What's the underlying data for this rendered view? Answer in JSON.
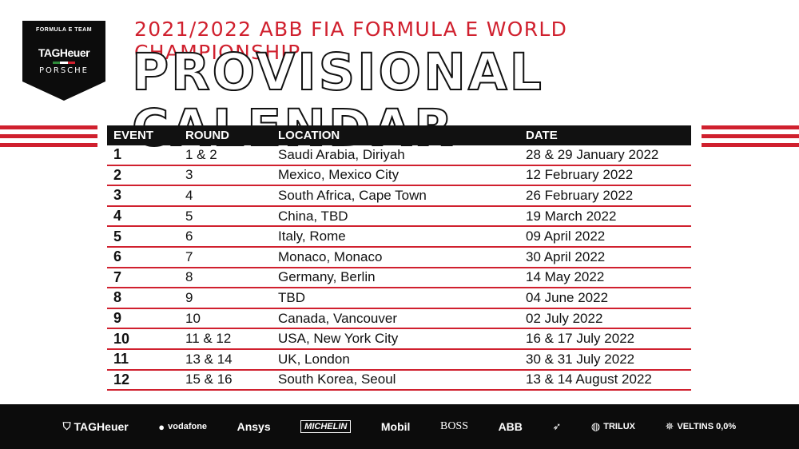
{
  "badge": {
    "team": "FORMULA E TEAM",
    "brand": "TAGHeuer",
    "partner": "PORSCHE"
  },
  "header": {
    "subtitle": "2021/2022 ABB FIA FORMULA E WORLD CHAMPIONSHIP",
    "title": "PROVISIONAL CALENDAR"
  },
  "table": {
    "columns": [
      "EVENT",
      "ROUND",
      "LOCATION",
      "DATE"
    ],
    "rows": [
      {
        "event": "1",
        "round": "1 & 2",
        "location": "Saudi Arabia, Diriyah",
        "date": "28 & 29 January 2022"
      },
      {
        "event": "2",
        "round": "3",
        "location": "Mexico, Mexico City",
        "date": "12 February 2022"
      },
      {
        "event": "3",
        "round": "4",
        "location": "South Africa, Cape Town",
        "date": "26 February 2022"
      },
      {
        "event": "4",
        "round": "5",
        "location": "China, TBD",
        "date": "19 March 2022"
      },
      {
        "event": "5",
        "round": "6",
        "location": "Italy, Rome",
        "date": "09 April 2022"
      },
      {
        "event": "6",
        "round": "7",
        "location": "Monaco, Monaco",
        "date": "30 April 2022"
      },
      {
        "event": "7",
        "round": "8",
        "location": "Germany, Berlin",
        "date": "14 May 2022"
      },
      {
        "event": "8",
        "round": "9",
        "location": "TBD",
        "date": "04 June 2022"
      },
      {
        "event": "9",
        "round": "10",
        "location": "Canada, Vancouver",
        "date": "02 July 2022"
      },
      {
        "event": "10",
        "round": "11 & 12",
        "location": "USA, New York City",
        "date": "16 & 17 July 2022"
      },
      {
        "event": "11",
        "round": "13 & 14",
        "location": "UK, London",
        "date": "30 & 31 July 2022"
      },
      {
        "event": "12",
        "round": "15 & 16",
        "location": "South Korea, Seoul",
        "date": "13 & 14 August 2022"
      }
    ]
  },
  "footer": {
    "sponsors": [
      "TAGHeuer",
      "vodafone",
      "Ansys",
      "MICHELIN",
      "Mobil",
      "BOSS",
      "ABB",
      "PUMA",
      "TRILUX",
      "VELTINS 0,0%"
    ]
  },
  "colors": {
    "accent": "#d0202e",
    "dark": "#111111"
  }
}
